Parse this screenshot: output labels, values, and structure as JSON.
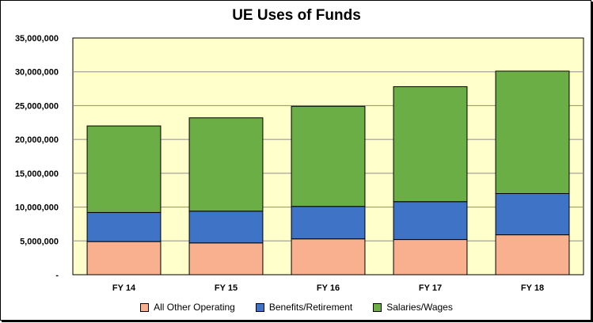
{
  "chart_data": {
    "type": "bar",
    "stacked": true,
    "title": "UE Uses of Funds",
    "categories": [
      "FY 14",
      "FY 15",
      "FY 16",
      "FY 17",
      "FY 18"
    ],
    "y_ticks": [
      "-",
      "5,000,000",
      "10,000,000",
      "15,000,000",
      "20,000,000",
      "25,000,000",
      "30,000,000",
      "35,000,000"
    ],
    "ylim": [
      0,
      35000000
    ],
    "grid": true,
    "legend_position": "bottom",
    "plot_background": "#ffffcc",
    "series": [
      {
        "name": "All Other Operating",
        "color": "#f9b08e",
        "values": [
          4900000,
          4700000,
          5300000,
          5200000,
          5900000
        ]
      },
      {
        "name": "Benefits/Retirement",
        "color": "#3f73c6",
        "values": [
          4300000,
          4700000,
          4800000,
          5600000,
          6100000
        ]
      },
      {
        "name": "Salaries/Wages",
        "color": "#6aae45",
        "values": [
          12800000,
          13800000,
          14800000,
          17000000,
          18100000
        ]
      }
    ]
  }
}
